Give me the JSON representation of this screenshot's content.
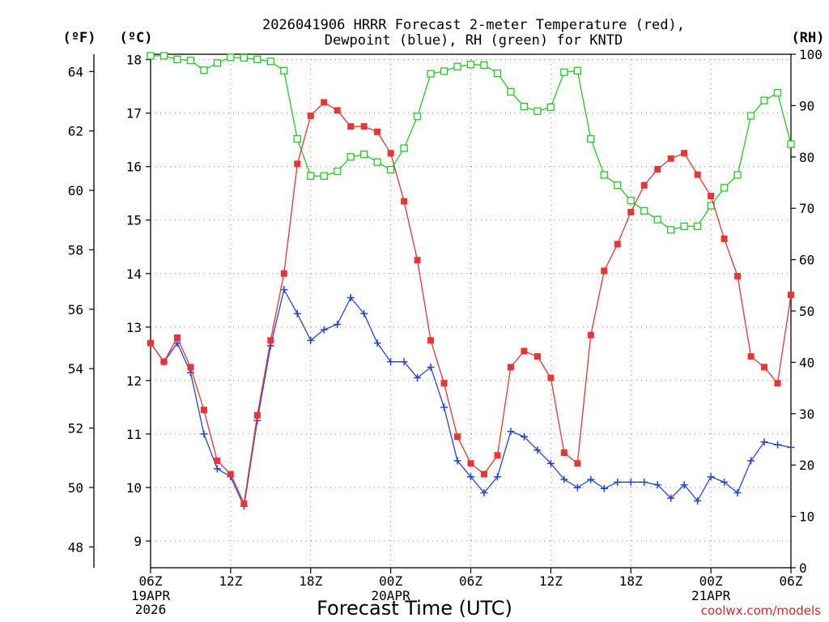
{
  "title_line1": "2026041906 HRRR Forecast 2-meter Temperature (red),",
  "title_line2": "Dewpoint (blue), RH (green) for KNTD",
  "unit_f": "(ºF)",
  "unit_c": "(ºC)",
  "unit_rh": "(RH)",
  "credit": "coolwx.com/models",
  "colors": {
    "temp": "#ee3333",
    "dewpoint": "#2244dd",
    "rh": "#22cc22",
    "grid": "#888888"
  },
  "chart_data": {
    "type": "line",
    "title": "2026041906 HRRR Forecast 2-meter Temperature (red), Dewpoint (blue), RH (green) for KNTD",
    "xlabel": "Forecast Time (UTC)",
    "x_hours": [
      0,
      1,
      2,
      3,
      4,
      5,
      6,
      7,
      8,
      9,
      10,
      11,
      12,
      13,
      14,
      15,
      16,
      17,
      18,
      19,
      20,
      21,
      22,
      23,
      24,
      25,
      26,
      27,
      28,
      29,
      30,
      31,
      32,
      33,
      34,
      35,
      36,
      37,
      38,
      39,
      40,
      41,
      42,
      43,
      44,
      45,
      46,
      47,
      48
    ],
    "x_ticks": [
      {
        "hour": 0,
        "label": "06Z",
        "sub": [
          "19APR",
          "2026"
        ]
      },
      {
        "hour": 6,
        "label": "12Z",
        "sub": []
      },
      {
        "hour": 12,
        "label": "18Z",
        "sub": []
      },
      {
        "hour": 18,
        "label": "00Z",
        "sub": [
          "20APR"
        ]
      },
      {
        "hour": 24,
        "label": "06Z",
        "sub": []
      },
      {
        "hour": 30,
        "label": "12Z",
        "sub": []
      },
      {
        "hour": 36,
        "label": "18Z",
        "sub": []
      },
      {
        "hour": 42,
        "label": "00Z",
        "sub": [
          "21APR"
        ]
      },
      {
        "hour": 48,
        "label": "06Z",
        "sub": []
      }
    ],
    "y_c_range": [
      8.5,
      18.1
    ],
    "y_c_ticks": [
      9,
      10,
      11,
      12,
      13,
      14,
      15,
      16,
      17,
      18
    ],
    "y_f_ticks": [
      48,
      50,
      52,
      54,
      56,
      58,
      60,
      62,
      64
    ],
    "y_rh_range": [
      0,
      100
    ],
    "y_rh_ticks": [
      0,
      10,
      20,
      30,
      40,
      50,
      60,
      70,
      80,
      90,
      100
    ],
    "grid": true,
    "series": [
      {
        "name": "Temperature",
        "axis": "celsius",
        "marker": "filled-square",
        "values": [
          12.7,
          12.35,
          12.8,
          12.25,
          11.45,
          10.5,
          10.25,
          9.7,
          11.35,
          12.75,
          14.0,
          16.05,
          16.95,
          17.2,
          17.05,
          16.75,
          16.75,
          16.65,
          16.25,
          15.35,
          14.25,
          12.75,
          11.95,
          10.95,
          10.45,
          10.25,
          10.6,
          12.25,
          12.55,
          12.45,
          12.05,
          10.65,
          10.45,
          12.85,
          14.05,
          14.55,
          15.15,
          15.65,
          15.95,
          16.15,
          16.25,
          15.85,
          15.45,
          14.65,
          13.95,
          12.45,
          12.25,
          11.95,
          13.6
        ]
      },
      {
        "name": "Dewpoint",
        "axis": "celsius",
        "marker": "plus",
        "values": [
          12.7,
          12.35,
          12.7,
          12.15,
          11.0,
          10.35,
          10.2,
          9.65,
          11.25,
          12.65,
          13.7,
          13.25,
          12.75,
          12.95,
          13.05,
          13.55,
          13.25,
          12.7,
          12.35,
          12.35,
          12.05,
          12.25,
          11.5,
          10.5,
          10.2,
          9.9,
          10.2,
          11.05,
          10.95,
          10.7,
          10.45,
          10.15,
          10.0,
          10.15,
          9.98,
          10.1,
          10.1,
          10.1,
          10.05,
          9.8,
          10.05,
          9.75,
          10.2,
          10.1,
          9.9,
          10.5,
          10.85,
          10.8,
          10.75
        ]
      },
      {
        "name": "RH",
        "axis": "rh",
        "marker": "open-square",
        "values": [
          99.7,
          99.7,
          99.0,
          98.8,
          96.9,
          98.3,
          99.4,
          99.3,
          99.0,
          98.6,
          96.8,
          83.5,
          76.3,
          76.3,
          77.2,
          80.0,
          80.5,
          79.0,
          77.5,
          81.7,
          87.9,
          96.2,
          96.7,
          97.6,
          98.0,
          97.9,
          96.3,
          92.7,
          89.8,
          88.9,
          89.7,
          96.5,
          96.8,
          83.5,
          76.5,
          74.5,
          71.5,
          69.5,
          67.8,
          65.8,
          66.5,
          66.5,
          70.5,
          74.0,
          76.5,
          88.0,
          91.0,
          92.5,
          82.5
        ]
      }
    ]
  }
}
